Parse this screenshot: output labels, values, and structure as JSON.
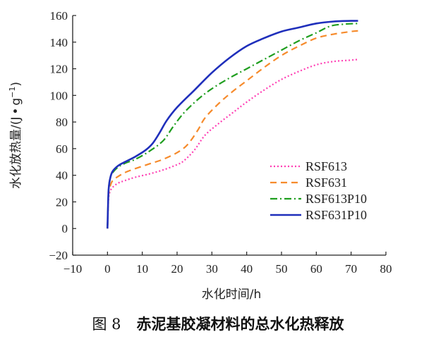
{
  "caption": {
    "figure_no": "图 8",
    "text": "赤泥基胶凝材料的总水化热释放"
  },
  "chart_data": {
    "type": "line",
    "title": "赤泥基胶凝材料的总水化热释放",
    "xlabel": "水化时间/h",
    "ylabel": "水化放热量/(J·g⁻¹)",
    "ylabel_main": "水化放热量/(J",
    "ylabel_dot": "•",
    "ylabel_g": "g",
    "ylabel_sup": "−1",
    "ylabel_close": ")",
    "xlim": [
      -10,
      80
    ],
    "ylim": [
      -20,
      160
    ],
    "xticks": [
      -10,
      0,
      10,
      20,
      30,
      40,
      50,
      60,
      70,
      80
    ],
    "yticks": [
      -20,
      0,
      20,
      40,
      60,
      80,
      100,
      120,
      140,
      160
    ],
    "xtick_labels": [
      "−10",
      "0",
      "10",
      "20",
      "30",
      "40",
      "50",
      "60",
      "70",
      "80"
    ],
    "ytick_labels": [
      "−20",
      "0",
      "20",
      "40",
      "60",
      "80",
      "100",
      "120",
      "140",
      "160"
    ],
    "grid": false,
    "legend_position": "center-right",
    "series": [
      {
        "name": "RSF613",
        "color": "#ff3fb4",
        "dash": "2,3",
        "x": [
          0,
          0.3,
          0.8,
          1.5,
          3,
          5,
          8,
          12,
          16,
          20,
          22,
          25,
          28,
          32,
          36,
          40,
          45,
          50,
          55,
          60,
          65,
          70,
          72
        ],
        "y": [
          0,
          22,
          28,
          31,
          34,
          36,
          38.5,
          41,
          44,
          48,
          51,
          59,
          70,
          79,
          87,
          95,
          104,
          112,
          118,
          123,
          125.5,
          126.5,
          127
        ]
      },
      {
        "name": "RSF631",
        "color": "#f68b2c",
        "dash": "9,6",
        "x": [
          0,
          0.3,
          0.8,
          1.5,
          3,
          5,
          8,
          12,
          16,
          20,
          23,
          26,
          28,
          32,
          36,
          40,
          45,
          50,
          55,
          60,
          65,
          70,
          72
        ],
        "y": [
          0,
          25,
          32,
          36,
          39,
          42,
          45,
          48.5,
          52,
          57,
          63,
          74,
          83,
          94,
          103,
          111,
          121,
          130,
          137,
          143,
          146,
          148,
          148.5
        ]
      },
      {
        "name": "RSF613P10",
        "color": "#1f9e1f",
        "dash": "10,4,2,4",
        "x": [
          0,
          0.3,
          0.8,
          1.5,
          3,
          5,
          8,
          12,
          16,
          19,
          22,
          26,
          30,
          35,
          40,
          45,
          50,
          55,
          60,
          64,
          68,
          72
        ],
        "y": [
          0,
          28,
          38,
          42,
          46,
          49,
          52,
          58,
          66,
          77,
          87,
          97,
          105,
          113,
          120,
          127,
          134,
          141,
          147,
          152,
          153.5,
          154
        ]
      },
      {
        "name": "RSF631P10",
        "color": "#1f2fbb",
        "dash": "",
        "x": [
          0,
          0.3,
          0.8,
          1.5,
          3,
          5,
          8,
          11,
          13,
          15,
          17,
          20,
          25,
          30,
          35,
          40,
          45,
          50,
          55,
          60,
          65,
          70,
          72
        ],
        "y": [
          0,
          28,
          38,
          43,
          47,
          50,
          54,
          59,
          64,
          72,
          81,
          91,
          104,
          117,
          128,
          137,
          143,
          148,
          151,
          154,
          155.5,
          156,
          156
        ]
      }
    ]
  }
}
